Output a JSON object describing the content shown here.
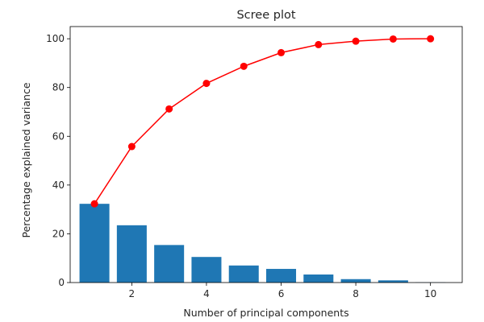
{
  "chart_data": {
    "type": "bar",
    "title": "Scree plot",
    "xlabel": "Number of principal components",
    "ylabel": "Percentage explained variance",
    "xlim": [
      0.35,
      10.85
    ],
    "ylim": [
      0,
      105
    ],
    "x_ticks": [
      2,
      4,
      6,
      8,
      10
    ],
    "y_ticks": [
      0,
      20,
      40,
      60,
      80,
      100
    ],
    "grid": false,
    "series": [
      {
        "type": "bar",
        "color": "#1f77b4",
        "x": [
          1,
          2,
          3,
          4,
          5,
          6,
          7,
          8,
          9,
          10
        ],
        "values": [
          32.3,
          23.5,
          15.4,
          10.5,
          7.0,
          5.6,
          3.3,
          1.4,
          0.9,
          0.1
        ]
      },
      {
        "type": "line",
        "color": "#ff0000",
        "marker": "circle",
        "x": [
          1,
          2,
          3,
          4,
          5,
          6,
          7,
          8,
          9,
          10
        ],
        "values": [
          32.3,
          55.8,
          71.2,
          81.7,
          88.7,
          94.3,
          97.6,
          99.0,
          99.9,
          100.0
        ]
      }
    ]
  }
}
